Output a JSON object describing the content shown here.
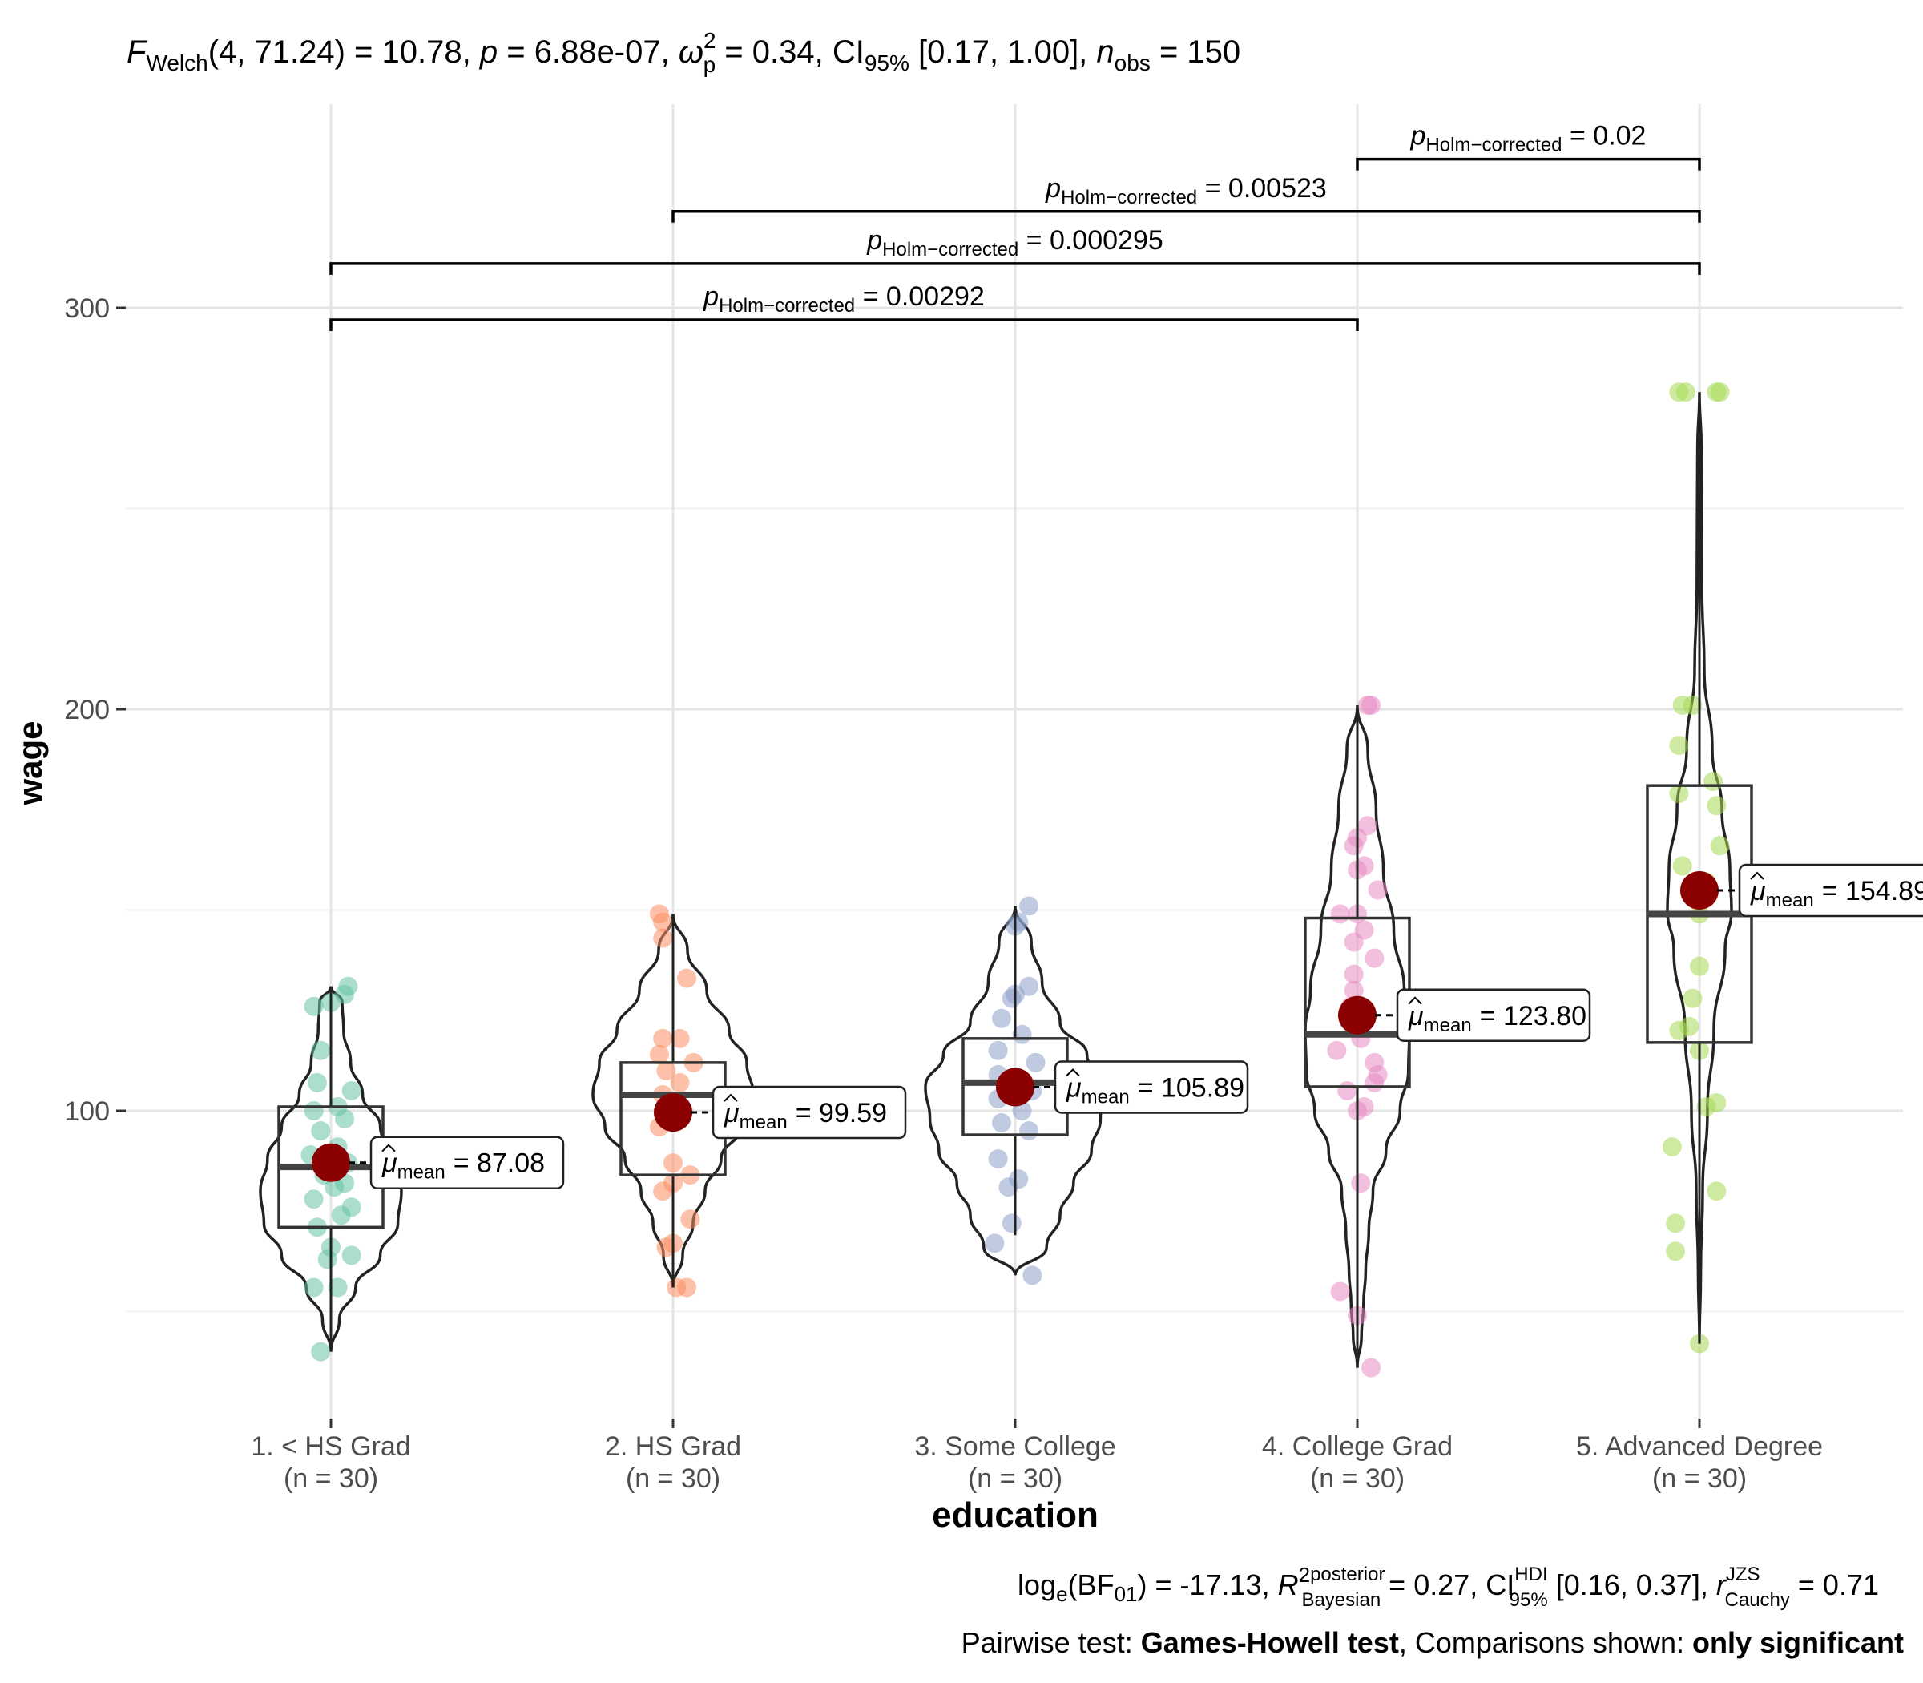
{
  "chart_data": {
    "type": "violin-box",
    "title": "F Welch(4, 71.24) = 10.78, p = 6.88e-07, ω̂²p = 0.34, CI95% [0.17, 1.00], n obs = 150",
    "title_parts": {
      "f": "F",
      "f_sub": "Welch",
      "df": "(4, 71.24) = 10.78,",
      "p": "p",
      "p_val": " = 6.88e-07,",
      "omega": "ω",
      "omega_sup": "2",
      "omega_sub": "p",
      "omega_val": " = 0.34,",
      "ci": "CI",
      "ci_sub": "95%",
      "ci_val": " [0.17, 1.00],",
      "n": "n",
      "n_sub": "obs",
      "n_val": " = 150"
    },
    "xlabel": "education",
    "ylabel": "wage",
    "ylim": [
      20,
      350
    ],
    "y_ticks": [
      100,
      200,
      300
    ],
    "grid": true,
    "categories": [
      "1. < HS Grad",
      "2. HS Grad",
      "3. Some College",
      "4. College Grad",
      "5. Advanced Degree"
    ],
    "n_labels": [
      "(n = 30)",
      "(n = 30)",
      "(n = 30)",
      "(n = 30)",
      "(n = 30)"
    ],
    "colors": [
      "#66c2a5",
      "#fc8d62",
      "#8da0cb",
      "#e78ac3",
      "#a6d854"
    ],
    "mean_color": "#8b0000",
    "means": [
      87.08,
      99.59,
      105.89,
      123.8,
      154.89
    ],
    "mean_labels": [
      "= 87.08",
      "= 99.59",
      "= 105.89",
      "= 123.80",
      "= 154.89"
    ],
    "mean_symbol": "μ",
    "mean_sub": "mean",
    "boxes": [
      {
        "q1": 71,
        "median": 86,
        "q3": 101,
        "lo": 40,
        "hi": 131
      },
      {
        "q1": 84,
        "median": 104,
        "q3": 112,
        "lo": 56,
        "hi": 149
      },
      {
        "q1": 94,
        "median": 107,
        "q3": 118,
        "lo": 69,
        "hi": 151
      },
      {
        "q1": 106,
        "median": 119,
        "q3": 148,
        "lo": 36,
        "hi": 201
      },
      {
        "q1": 117,
        "median": 149,
        "q3": 181,
        "lo": 42,
        "hi": 279
      }
    ],
    "violins": [
      [
        [
          40,
          0.0
        ],
        [
          48,
          0.12
        ],
        [
          56,
          0.35
        ],
        [
          64,
          0.7
        ],
        [
          72,
          0.95
        ],
        [
          80,
          1.0
        ],
        [
          88,
          0.9
        ],
        [
          96,
          0.7
        ],
        [
          104,
          0.45
        ],
        [
          112,
          0.28
        ],
        [
          120,
          0.18
        ],
        [
          127,
          0.16
        ],
        [
          131,
          0.0
        ]
      ],
      [
        [
          56,
          0.0
        ],
        [
          64,
          0.12
        ],
        [
          72,
          0.25
        ],
        [
          80,
          0.4
        ],
        [
          88,
          0.6
        ],
        [
          96,
          0.85
        ],
        [
          104,
          1.0
        ],
        [
          112,
          0.92
        ],
        [
          120,
          0.7
        ],
        [
          130,
          0.42
        ],
        [
          140,
          0.18
        ],
        [
          149,
          0.0
        ]
      ],
      [
        [
          59,
          0.0
        ],
        [
          66,
          0.35
        ],
        [
          74,
          0.5
        ],
        [
          82,
          0.65
        ],
        [
          90,
          0.85
        ],
        [
          98,
          0.95
        ],
        [
          106,
          1.0
        ],
        [
          114,
          0.8
        ],
        [
          122,
          0.5
        ],
        [
          132,
          0.3
        ],
        [
          142,
          0.18
        ],
        [
          151,
          0.0
        ]
      ],
      [
        [
          36,
          0.0
        ],
        [
          44,
          0.08
        ],
        [
          52,
          0.12
        ],
        [
          60,
          0.16
        ],
        [
          70,
          0.22
        ],
        [
          80,
          0.3
        ],
        [
          90,
          0.55
        ],
        [
          100,
          0.82
        ],
        [
          110,
          0.98
        ],
        [
          120,
          1.0
        ],
        [
          130,
          0.9
        ],
        [
          145,
          0.7
        ],
        [
          160,
          0.5
        ],
        [
          175,
          0.36
        ],
        [
          190,
          0.2
        ],
        [
          201,
          0.0
        ]
      ],
      [
        [
          42,
          0.0
        ],
        [
          60,
          0.04
        ],
        [
          80,
          0.1
        ],
        [
          100,
          0.25
        ],
        [
          120,
          0.45
        ],
        [
          140,
          0.8
        ],
        [
          150,
          1.0
        ],
        [
          160,
          0.95
        ],
        [
          175,
          0.7
        ],
        [
          190,
          0.4
        ],
        [
          210,
          0.15
        ],
        [
          230,
          0.08
        ],
        [
          250,
          0.07
        ],
        [
          265,
          0.06
        ],
        [
          279,
          0.0
        ]
      ]
    ],
    "points": [
      [
        [
          40,
          -0.03
        ],
        [
          56,
          -0.05
        ],
        [
          56,
          0.02
        ],
        [
          63,
          -0.01
        ],
        [
          64,
          0.06
        ],
        [
          66,
          0.0
        ],
        [
          71,
          -0.04
        ],
        [
          74,
          0.03
        ],
        [
          76,
          0.06
        ],
        [
          78,
          -0.05
        ],
        [
          81,
          0.01
        ],
        [
          82,
          0.04
        ],
        [
          84,
          -0.02
        ],
        [
          87,
          0.05
        ],
        [
          89,
          -0.06
        ],
        [
          91,
          0.02
        ],
        [
          95,
          -0.03
        ],
        [
          98,
          0.04
        ],
        [
          100,
          -0.05
        ],
        [
          101,
          0.02
        ],
        [
          105,
          0.06
        ],
        [
          107,
          -0.04
        ],
        [
          115,
          -0.03
        ],
        [
          126,
          -0.05
        ],
        [
          127,
          0.0
        ],
        [
          129,
          0.04
        ],
        [
          131,
          0.05
        ]
      ],
      [
        [
          56,
          0.01
        ],
        [
          56,
          0.04
        ],
        [
          66,
          -0.02
        ],
        [
          67,
          0.0
        ],
        [
          73,
          0.05
        ],
        [
          80,
          -0.03
        ],
        [
          82,
          0.0
        ],
        [
          84,
          0.05
        ],
        [
          87,
          0.0
        ],
        [
          96,
          -0.04
        ],
        [
          100,
          0.03
        ],
        [
          104,
          -0.03
        ],
        [
          107,
          0.02
        ],
        [
          110,
          -0.02
        ],
        [
          112,
          0.06
        ],
        [
          114,
          -0.04
        ],
        [
          118,
          -0.03
        ],
        [
          118,
          0.02
        ],
        [
          133,
          0.04
        ],
        [
          143,
          -0.03
        ],
        [
          147,
          -0.03
        ],
        [
          149,
          -0.04
        ]
      ],
      [
        [
          59,
          0.05
        ],
        [
          67,
          -0.06
        ],
        [
          72,
          -0.01
        ],
        [
          81,
          -0.02
        ],
        [
          83,
          0.01
        ],
        [
          88,
          -0.05
        ],
        [
          95,
          0.04
        ],
        [
          97,
          -0.04
        ],
        [
          100,
          0.02
        ],
        [
          103,
          -0.05
        ],
        [
          105,
          0.05
        ],
        [
          107,
          0.0
        ],
        [
          109,
          -0.05
        ],
        [
          112,
          0.06
        ],
        [
          115,
          -0.05
        ],
        [
          119,
          0.02
        ],
        [
          123,
          -0.04
        ],
        [
          128,
          -0.01
        ],
        [
          129,
          0.0
        ],
        [
          131,
          0.04
        ],
        [
          146,
          0.0
        ],
        [
          147,
          0.01
        ],
        [
          151,
          0.04
        ]
      ],
      [
        [
          36,
          0.04
        ],
        [
          49,
          0.0
        ],
        [
          55,
          -0.05
        ],
        [
          82,
          0.01
        ],
        [
          100,
          0.0
        ],
        [
          101,
          0.02
        ],
        [
          105,
          -0.03
        ],
        [
          107,
          0.05
        ],
        [
          109,
          0.06
        ],
        [
          112,
          0.05
        ],
        [
          115,
          -0.06
        ],
        [
          118,
          0.01
        ],
        [
          126,
          -0.02
        ],
        [
          130,
          -0.01
        ],
        [
          134,
          -0.01
        ],
        [
          138,
          0.05
        ],
        [
          142,
          -0.01
        ],
        [
          145,
          0.02
        ],
        [
          149,
          -0.05
        ],
        [
          149,
          0.0
        ],
        [
          155,
          0.06
        ],
        [
          160,
          0.0
        ],
        [
          161,
          0.02
        ],
        [
          166,
          -0.01
        ],
        [
          168,
          0.0
        ],
        [
          171,
          0.03
        ],
        [
          201,
          0.04
        ],
        [
          201,
          0.03
        ]
      ],
      [
        [
          42,
          0.0
        ],
        [
          65,
          -0.07
        ],
        [
          72,
          -0.07
        ],
        [
          80,
          0.05
        ],
        [
          91,
          -0.08
        ],
        [
          101,
          0.02
        ],
        [
          102,
          0.05
        ],
        [
          115,
          0.0
        ],
        [
          120,
          -0.06
        ],
        [
          121,
          -0.03
        ],
        [
          128,
          -0.02
        ],
        [
          136,
          0.0
        ],
        [
          149,
          0.0
        ],
        [
          157,
          0.02
        ],
        [
          161,
          -0.05
        ],
        [
          166,
          0.06
        ],
        [
          176,
          0.05
        ],
        [
          179,
          -0.06
        ],
        [
          182,
          0.04
        ],
        [
          191,
          -0.06
        ],
        [
          201,
          -0.05
        ],
        [
          201,
          -0.02
        ],
        [
          279,
          -0.06
        ],
        [
          279,
          0.05
        ],
        [
          279,
          0.06
        ],
        [
          279,
          -0.04
        ]
      ]
    ],
    "comparisons": [
      {
        "from": 3,
        "to": 4,
        "label_p": "p",
        "label_sub": "Holm−corrected",
        "label_val": " = 0.02",
        "y": 337
      },
      {
        "from": 1,
        "to": 4,
        "label_p": "p",
        "label_sub": "Holm−corrected",
        "label_val": " = 0.00523",
        "y": 324
      },
      {
        "from": 0,
        "to": 4,
        "label_p": "p",
        "label_sub": "Holm−corrected",
        "label_val": " = 0.000295",
        "y": 311
      },
      {
        "from": 0,
        "to": 3,
        "label_p": "p",
        "label_sub": "Holm−corrected",
        "label_val": " = 0.00292",
        "y": 297
      }
    ],
    "caption1": {
      "log": "log",
      "log_sub": "e",
      "bf": "(BF",
      "bf_sub": "01",
      "bf_val": ") = -17.13,",
      "r": "R",
      "r_sup": "2",
      "r_sup_word": "posterior",
      "r_sub": "Bayesian",
      "r_val": " = 0.27,",
      "ci": "CI",
      "ci_sup": "HDI",
      "ci_sub": "95%",
      "ci_val": " [0.16, 0.37],",
      "rc": "r",
      "rc_sup": "JZS",
      "rc_sub": "Cauchy",
      "rc_val": " = 0.71"
    },
    "caption2": {
      "prefix": "Pairwise test: ",
      "test": "Games-Howell test",
      "mid": ", Comparisons shown: ",
      "shown": "only significant"
    }
  }
}
